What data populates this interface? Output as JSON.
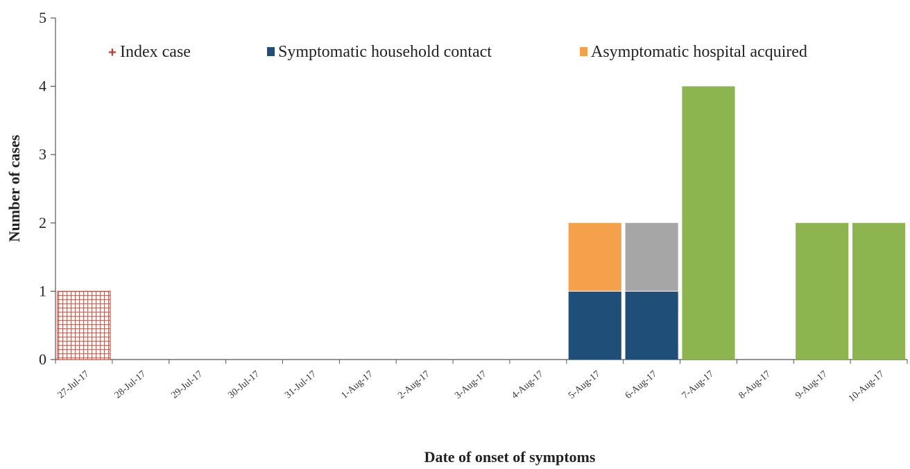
{
  "chart_data": {
    "type": "bar",
    "stacked": true,
    "xlabel": "Date of onset of symptoms",
    "ylabel": "Number of cases",
    "ylim": [
      0,
      5
    ],
    "yticks": [
      0,
      1,
      2,
      3,
      4,
      5
    ],
    "grid": false,
    "legend_position": "top",
    "categories": [
      "27-Jul-17",
      "28-Jul-17",
      "29-Jul-17",
      "30-Jul-17",
      "31-Jul-17",
      "1-Aug-17",
      "2-Aug-17",
      "3-Aug-17",
      "4-Aug-17",
      "5-Aug-17",
      "6-Aug-17",
      "7-Aug-17",
      "8-Aug-17",
      "9-Aug-17",
      "10-Aug-17"
    ],
    "series": [
      {
        "name": "Index case",
        "color": "#c0392b",
        "pattern": "grid",
        "values": [
          1,
          0,
          0,
          0,
          0,
          0,
          0,
          0,
          0,
          0,
          0,
          0,
          0,
          0,
          0
        ]
      },
      {
        "name": "Symptomatic household contact",
        "color": "#1f4e79",
        "values": [
          0,
          0,
          0,
          0,
          0,
          0,
          0,
          0,
          0,
          1,
          1,
          0,
          0,
          0,
          0
        ]
      },
      {
        "name": "Asymptomatic hospital acquired",
        "color": "#f5a04a",
        "values": [
          0,
          0,
          0,
          0,
          0,
          0,
          0,
          0,
          0,
          1,
          0,
          0,
          0,
          0,
          0
        ]
      },
      {
        "color": "#a6a6a6",
        "values": [
          0,
          0,
          0,
          0,
          0,
          0,
          0,
          0,
          0,
          0,
          1,
          0,
          0,
          0,
          0
        ]
      },
      {
        "color": "#8db54f",
        "values": [
          0,
          0,
          0,
          0,
          0,
          0,
          0,
          0,
          0,
          0,
          0,
          4,
          0,
          2,
          2
        ]
      }
    ]
  }
}
